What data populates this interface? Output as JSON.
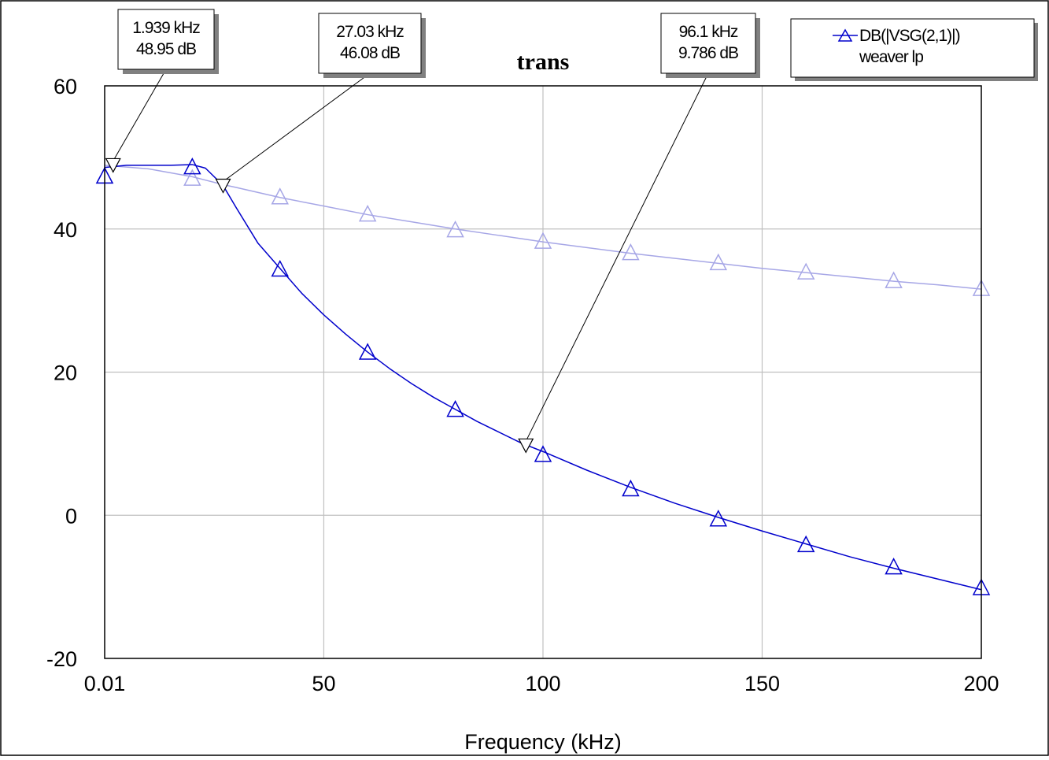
{
  "chart_data": {
    "type": "line",
    "title": "trans",
    "xlabel": "Frequency (kHz)",
    "ylabel": "",
    "xlim": [
      0.01,
      200
    ],
    "ylim": [
      -20,
      60
    ],
    "x_ticks": [
      0.01,
      50,
      100,
      150,
      200
    ],
    "x_tick_labels": [
      "0.01",
      "50",
      "100",
      "150",
      "200"
    ],
    "y_ticks": [
      -20,
      0,
      20,
      40,
      60
    ],
    "y_tick_labels": [
      "-20",
      "0",
      "20",
      "40",
      "60"
    ],
    "grid": true,
    "legend_position": "top-right",
    "legend": {
      "entry_label": "DB(|VSG(2,1)|)",
      "source_label": "weaver lp"
    },
    "series": [
      {
        "name": "DB(|VSG(2,1)|)",
        "color": "#0000cc",
        "marker": "triangle",
        "x": [
          0.01,
          5,
          10,
          15,
          20,
          23,
          27,
          30,
          35,
          40,
          45,
          50,
          55,
          60,
          65,
          70,
          75,
          80,
          85,
          90,
          95,
          100,
          110,
          120,
          130,
          140,
          150,
          160,
          170,
          180,
          190,
          200
        ],
        "values": [
          48.6,
          48.9,
          48.9,
          48.9,
          49.0,
          48.5,
          46.1,
          43.0,
          38.0,
          34.5,
          31.0,
          28.0,
          25.3,
          22.8,
          20.5,
          18.4,
          16.5,
          14.8,
          13.1,
          11.6,
          10.1,
          8.9,
          6.3,
          3.9,
          1.7,
          -0.3,
          -2.2,
          -4.0,
          -5.8,
          -7.4,
          -8.9,
          -10.4
        ],
        "marker_x": [
          0.01,
          20,
          40,
          60,
          80,
          100,
          120,
          140,
          160,
          180,
          200
        ],
        "marker_y": [
          47.3,
          48.6,
          34.3,
          22.7,
          14.7,
          8.4,
          3.6,
          -0.6,
          -4.2,
          -7.3,
          -10.2
        ]
      },
      {
        "name": "DB(|VSG(2,1)|)",
        "color": "#a6a6e6",
        "marker": "triangle",
        "x": [
          0.01,
          10,
          20,
          27,
          30,
          40,
          50,
          60,
          70,
          80,
          90,
          100,
          110,
          120,
          130,
          140,
          150,
          160,
          170,
          180,
          190,
          200
        ],
        "values": [
          48.9,
          48.4,
          47.3,
          46.2,
          45.8,
          44.4,
          43.2,
          42.0,
          41.0,
          40.0,
          39.1,
          38.2,
          37.4,
          36.6,
          35.9,
          35.2,
          34.5,
          33.9,
          33.3,
          32.7,
          32.2,
          31.6
        ],
        "marker_x": [
          0.01,
          20,
          40,
          60,
          80,
          100,
          120,
          140,
          160,
          180,
          200
        ],
        "marker_y": [
          47.3,
          47.0,
          44.4,
          42.0,
          39.8,
          38.2,
          36.6,
          35.2,
          33.9,
          32.7,
          31.6
        ]
      }
    ],
    "markers": [
      {
        "x": 1.939,
        "y": 48.95,
        "line1": "1.939 kHz",
        "line2": "48.95 dB"
      },
      {
        "x": 27.03,
        "y": 46.08,
        "line1": "27.03 kHz",
        "line2": "46.08 dB"
      },
      {
        "x": 96.1,
        "y": 9.786,
        "line1": "96.1 kHz",
        "line2": "9.786 dB"
      }
    ]
  }
}
